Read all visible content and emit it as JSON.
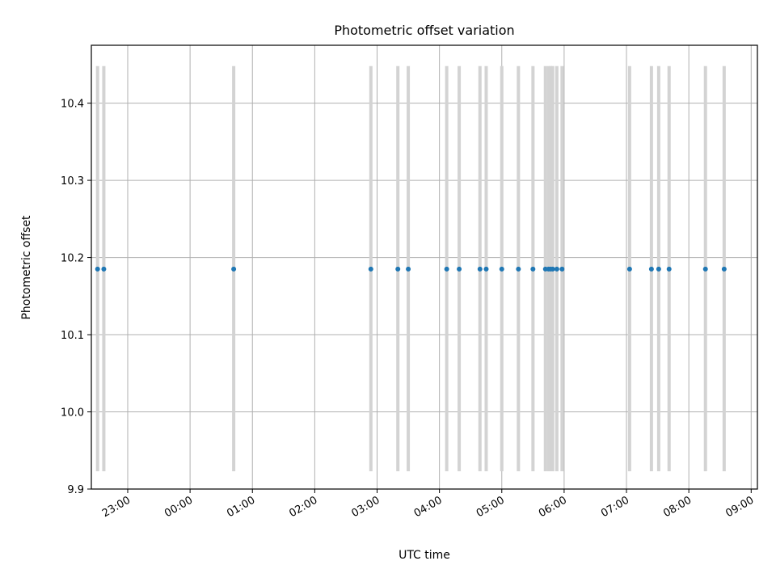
{
  "chart_data": {
    "type": "scatter",
    "title": "Photometric offset variation",
    "xlabel": "UTC time",
    "ylabel": "Photometric offset",
    "x_axis": "time",
    "x_tick_labels": [
      "23:00",
      "00:00",
      "01:00",
      "02:00",
      "03:00",
      "04:00",
      "05:00",
      "06:00",
      "07:00",
      "08:00",
      "09:00"
    ],
    "y_ticks": [
      9.9,
      10.0,
      10.1,
      10.2,
      10.3,
      10.4
    ],
    "y_tick_labels": [
      "9.9",
      "10.0",
      "10.1",
      "10.2",
      "10.3",
      "10.4"
    ],
    "ylim": [
      9.9,
      10.475
    ],
    "xlim": [
      "22:25",
      "09:06"
    ],
    "grid": true,
    "x": [
      "22:31",
      "22:37",
      "00:42",
      "02:54",
      "03:20",
      "03:30",
      "04:07",
      "04:19",
      "04:39",
      "04:45",
      "05:00",
      "05:16",
      "05:30",
      "05:42",
      "05:45",
      "05:47",
      "05:49",
      "05:53",
      "05:58",
      "07:03",
      "07:24",
      "07:31",
      "07:41",
      "08:16",
      "08:34"
    ],
    "y": [
      10.185,
      10.185,
      10.185,
      10.185,
      10.185,
      10.185,
      10.185,
      10.185,
      10.185,
      10.185,
      10.185,
      10.185,
      10.185,
      10.185,
      10.185,
      10.185,
      10.185,
      10.185,
      10.185,
      10.185,
      10.185,
      10.185,
      10.185,
      10.185,
      10.185
    ],
    "error_band": [
      9.923,
      10.448
    ],
    "colors": {
      "points": "#1f77b4",
      "error_bars": "#d3d3d3",
      "grid": "#b0b0b0"
    }
  }
}
